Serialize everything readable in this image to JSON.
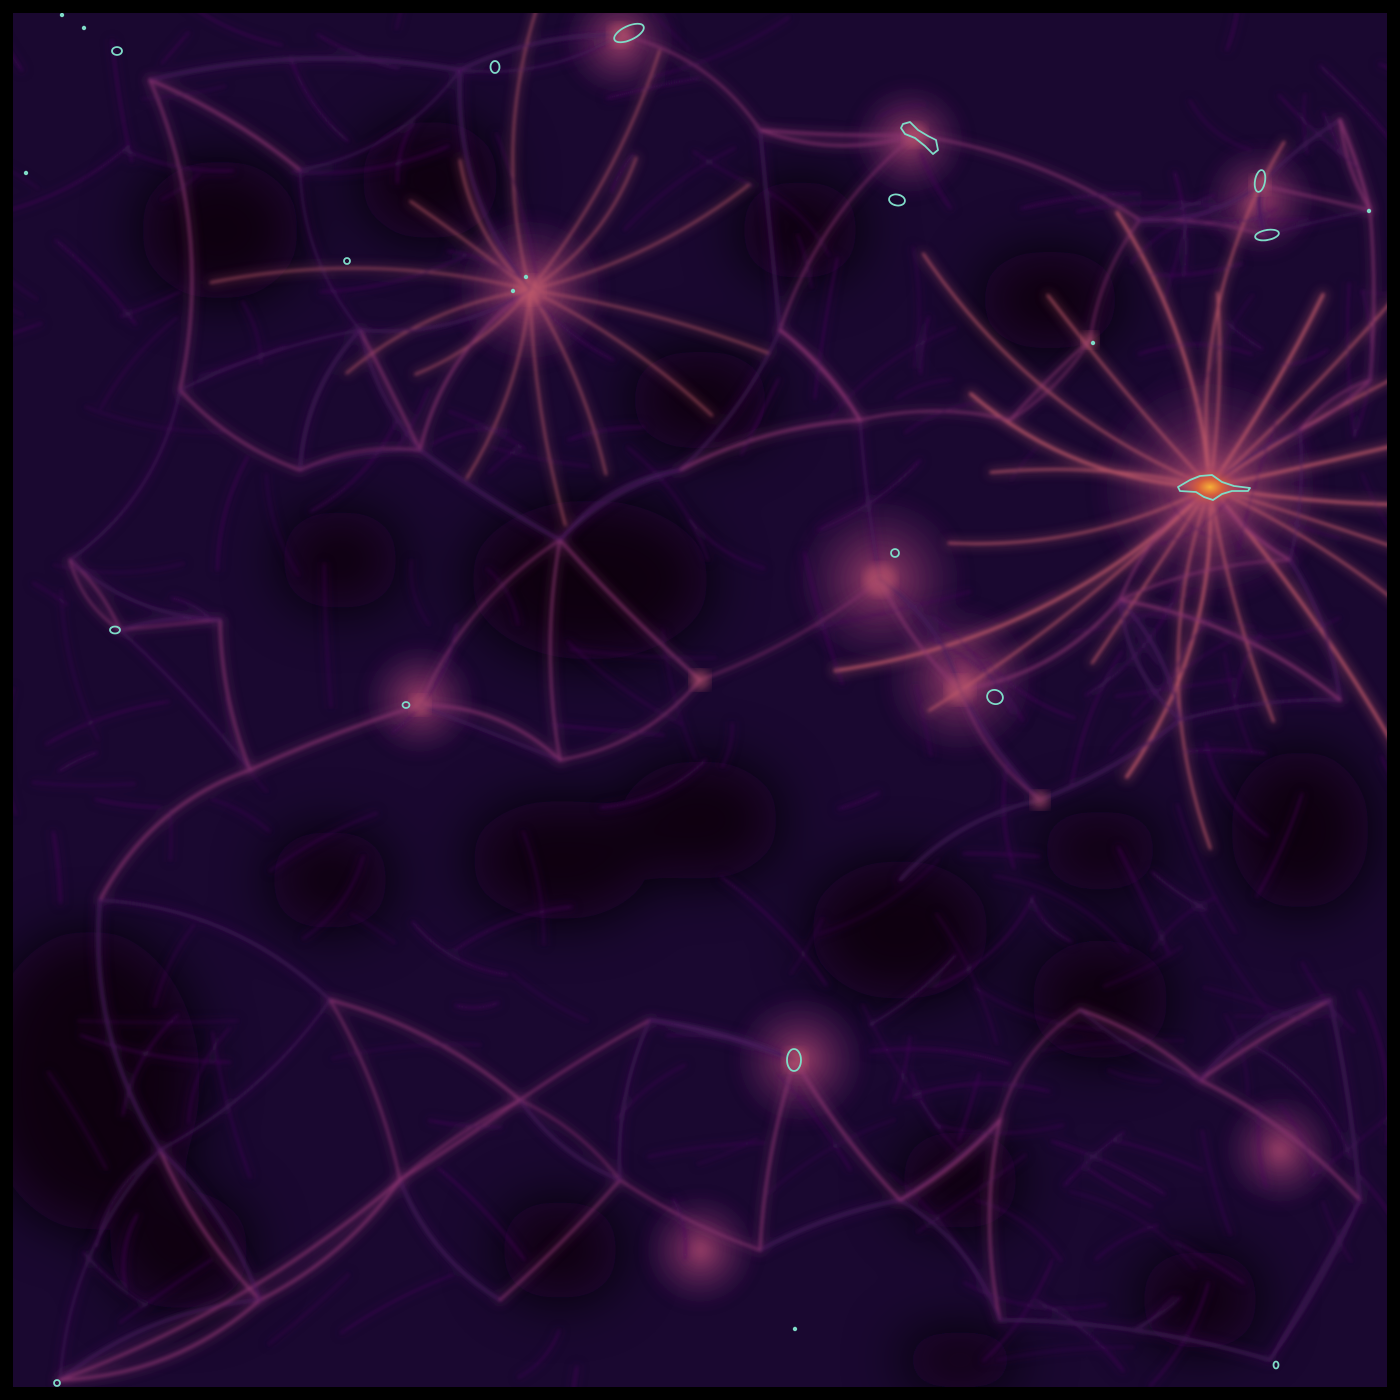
{
  "image": {
    "subject": "cosmic-web-density-projection",
    "colors": {
      "void": "#07010d",
      "background": "#1a0830",
      "filament_dim": "#4a1a5e",
      "filament": "#8a3470",
      "filament_bright": "#c05a6a",
      "node_hot": "#f0a030",
      "contour": "#7fdcc8",
      "frame": "#000000"
    }
  }
}
